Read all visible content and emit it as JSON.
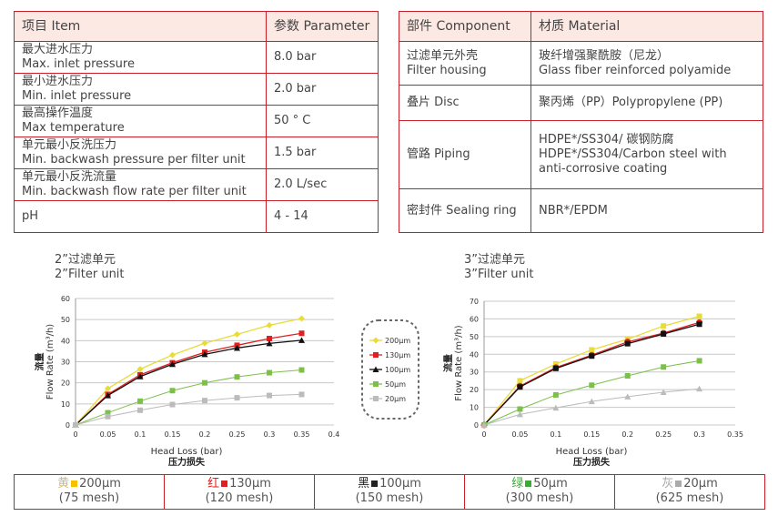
{
  "params_table": {
    "headers": [
      "项目 Item",
      "参数 Parameter"
    ],
    "rows": [
      {
        "zh": "最大进水压力",
        "en": "Max. inlet pressure",
        "value": "8.0 bar"
      },
      {
        "zh": "最小进水压力",
        "en": "Min. inlet pressure",
        "value": "2.0 bar"
      },
      {
        "zh": "最高操作温度",
        "en": "Max temperature",
        "value": "50 ° C"
      },
      {
        "zh": "单元最小反洗压力",
        "en": "Min. backwash pressure per filter unit",
        "value": "1.5 bar"
      },
      {
        "zh": "单元最小反洗流量",
        "en": "Min. backwash flow rate per filter unit",
        "value": "2.0 L/sec"
      },
      {
        "zh": "pH",
        "en": "",
        "value": "4 - 14"
      }
    ]
  },
  "material_table": {
    "headers": [
      "部件 Component",
      "材质 Material"
    ],
    "rows": [
      {
        "comp_zh": "过滤单元外壳",
        "comp_en": "Filter housing",
        "mat1": "玻纤增强聚酰胺（尼龙）",
        "mat2": "Glass fiber reinforced polyamide"
      },
      {
        "comp_zh": "叠片 Disc",
        "comp_en": "",
        "mat1": "聚丙烯（PP）Polypropylene (PP)",
        "mat2": ""
      },
      {
        "comp_zh": "管路 Piping",
        "comp_en": "",
        "mat1": "HDPE*/SS304/ 碳钢防腐",
        "mat2": "HDPE*/SS304/Carbon steel with anti-corrosive coating"
      },
      {
        "comp_zh": "密封件 Sealing ring",
        "comp_en": "",
        "mat1": "NBR*/EPDM",
        "mat2": ""
      }
    ]
  },
  "chart_data": [
    {
      "type": "line",
      "title_zh": "2”过滤单元",
      "title_en": "2”Filter unit",
      "xlabel": "Head Loss (bar)",
      "xlabel_zh": "压力损失",
      "ylabel_zh": "流量",
      "ylabel": "Flow Rate (m³/h)",
      "xlim": [
        0,
        0.4
      ],
      "ylim": [
        0,
        60
      ],
      "xticks": [
        "0",
        "0.05",
        "0.1",
        "0.15",
        "0.2",
        "0.25",
        "0.3",
        "0.35",
        "0.4"
      ],
      "yticks": [
        "0",
        "10",
        "20",
        "30",
        "40",
        "50",
        "60"
      ],
      "grid": true,
      "legend": "right",
      "x": [
        0,
        0.05,
        0.1,
        0.15,
        0.2,
        0.25,
        0.3,
        0.35
      ],
      "series": [
        {
          "name": "200µm",
          "color": "#e8dc3a",
          "marker": "diamond",
          "values": [
            0,
            17.3,
            26.5,
            33.2,
            38.8,
            43,
            47.3,
            50.5
          ]
        },
        {
          "name": "130µm",
          "color": "#e02020",
          "marker": "square",
          "values": [
            0,
            14.5,
            23.8,
            29.5,
            34.5,
            37.8,
            41,
            43.5
          ]
        },
        {
          "name": "100µm",
          "color": "#111111",
          "marker": "triangle",
          "values": [
            0,
            14,
            23,
            28.8,
            33.5,
            36.5,
            38.7,
            40.2
          ]
        },
        {
          "name": "50µm",
          "color": "#7cc04a",
          "marker": "square",
          "values": [
            0,
            5.8,
            11.3,
            16.3,
            20,
            22.8,
            24.8,
            26.1
          ]
        },
        {
          "name": "20µm",
          "color": "#bbbbbb",
          "marker": "square",
          "values": [
            0,
            4,
            7,
            9.7,
            11.6,
            12.9,
            14,
            14.5
          ]
        }
      ]
    },
    {
      "type": "line",
      "title_zh": "3”过滤单元",
      "title_en": "3”Filter unit",
      "xlabel": "Head Loss (bar)",
      "xlabel_zh": "压力损失",
      "ylabel_zh": "流量",
      "ylabel": "Flow Rate (m³/h)",
      "xlim": [
        0,
        0.35
      ],
      "ylim": [
        0,
        70
      ],
      "xticks": [
        "0",
        "0.05",
        "0.1",
        "0.15",
        "0.2",
        "0.25",
        "0.3",
        "0.35"
      ],
      "yticks": [
        "0",
        "10",
        "20",
        "30",
        "40",
        "50",
        "60",
        "70"
      ],
      "grid": true,
      "x": [
        0,
        0.05,
        0.1,
        0.15,
        0.2,
        0.25,
        0.3
      ],
      "series": [
        {
          "color": "#e8dc3a",
          "marker": "square",
          "values": [
            0,
            25,
            34.5,
            42.5,
            48.5,
            56,
            61.5
          ]
        },
        {
          "color": "#e02020",
          "marker": "circle",
          "values": [
            0,
            22,
            32.5,
            39.5,
            47,
            52,
            58
          ]
        },
        {
          "color": "#111111",
          "marker": "square",
          "values": [
            0,
            21.5,
            32,
            39,
            46,
            51.5,
            57
          ]
        },
        {
          "color": "#7cc04a",
          "marker": "square",
          "values": [
            0,
            9,
            17,
            22.5,
            27.8,
            32.8,
            36.3
          ]
        },
        {
          "color": "#bbbbbb",
          "marker": "triangle",
          "values": [
            0,
            6,
            9.7,
            13.3,
            16,
            18.5,
            20.5
          ]
        }
      ]
    }
  ],
  "color_key": [
    {
      "zh": "黄",
      "size": "200µm",
      "mesh": "(75 mesh)",
      "color": "#f5c000"
    },
    {
      "zh": "红",
      "size": "130µm",
      "mesh": "(120 mesh)",
      "color": "#e02020"
    },
    {
      "zh": "黑",
      "size": "100µm",
      "mesh": "(150 mesh)",
      "color": "#222222"
    },
    {
      "zh": "绿",
      "size": "50µm",
      "mesh": "(300 mesh)",
      "color": "#3aaa35"
    },
    {
      "zh": "灰",
      "size": "20µm",
      "mesh": "(625 mesh)",
      "color": "#aaaaaa"
    }
  ]
}
